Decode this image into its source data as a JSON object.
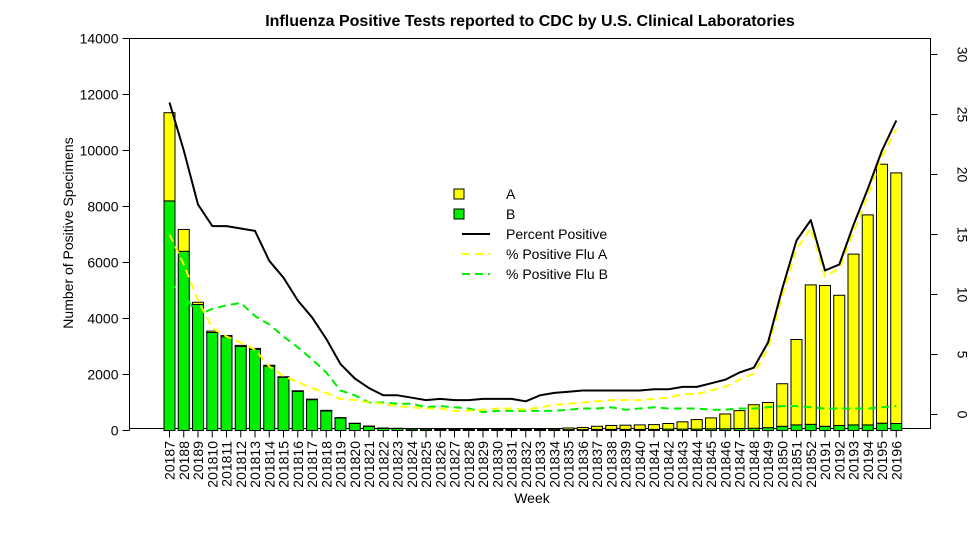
{
  "chart_data": {
    "type": "bar",
    "title": "Influenza Positive Tests reported to CDC by U.S. Clinical Laboratories",
    "xlabel": "Week",
    "ylabel": "Number of Positive Specimens",
    "ylim": [
      0,
      14000
    ],
    "y_ticks": [
      0,
      2000,
      4000,
      6000,
      8000,
      10000,
      12000,
      14000
    ],
    "y2lim": [
      -1.5,
      31
    ],
    "y2_ticks": [
      0,
      5,
      10,
      15,
      20,
      25,
      30
    ],
    "stacked": true,
    "grid": false,
    "legend_position": "center",
    "categories": [
      "20187",
      "20188",
      "20189",
      "201810",
      "201811",
      "201812",
      "201813",
      "201814",
      "201815",
      "201816",
      "201817",
      "201818",
      "201819",
      "201820",
      "201821",
      "201822",
      "201823",
      "201824",
      "201825",
      "201826",
      "201827",
      "201828",
      "201829",
      "201830",
      "201831",
      "201832",
      "201833",
      "201834",
      "201835",
      "201836",
      "201837",
      "201838",
      "201839",
      "201840",
      "201841",
      "201842",
      "201843",
      "201844",
      "201845",
      "201846",
      "201847",
      "201848",
      "201849",
      "201850",
      "201851",
      "201852",
      "20191",
      "20192",
      "20193",
      "20194",
      "20195",
      "20196"
    ],
    "series": [
      {
        "name": "B",
        "kind": "bar",
        "color": "#00ee00",
        "values": [
          8200,
          6400,
          4500,
          3500,
          3350,
          3000,
          2900,
          2300,
          1900,
          1400,
          1100,
          700,
          450,
          250,
          150,
          80,
          70,
          50,
          50,
          40,
          30,
          30,
          30,
          30,
          30,
          30,
          30,
          30,
          30,
          30,
          40,
          40,
          40,
          40,
          40,
          50,
          50,
          50,
          60,
          60,
          70,
          80,
          100,
          150,
          200,
          220,
          150,
          180,
          200,
          200,
          260,
          250
        ]
      },
      {
        "name": "A",
        "kind": "bar",
        "color": "#ffff00",
        "values": [
          3150,
          780,
          80,
          50,
          40,
          40,
          30,
          30,
          20,
          20,
          20,
          20,
          10,
          10,
          10,
          10,
          10,
          10,
          10,
          10,
          10,
          10,
          10,
          10,
          20,
          20,
          20,
          40,
          60,
          80,
          110,
          140,
          150,
          160,
          170,
          200,
          260,
          340,
          390,
          530,
          640,
          840,
          900,
          1520,
          3050,
          4980,
          5030,
          4650,
          6100,
          7500,
          9250,
          8950
        ]
      },
      {
        "name": "Percent Positive",
        "kind": "line",
        "color": "#000000",
        "dash": "solid",
        "axis": "right",
        "values": [
          26.0,
          22.0,
          17.5,
          15.7,
          15.7,
          15.5,
          15.3,
          12.8,
          11.4,
          9.5,
          8.1,
          6.3,
          4.2,
          3.0,
          2.2,
          1.6,
          1.6,
          1.4,
          1.2,
          1.3,
          1.2,
          1.2,
          1.3,
          1.3,
          1.3,
          1.1,
          1.6,
          1.8,
          1.9,
          2.0,
          2.0,
          2.0,
          2.0,
          2.0,
          2.1,
          2.1,
          2.3,
          2.3,
          2.6,
          2.9,
          3.5,
          3.9,
          6.0,
          10.5,
          14.5,
          16.2,
          12.0,
          12.5,
          15.8,
          18.8,
          22.0,
          24.5
        ]
      },
      {
        "name": "% Positive Flu A",
        "kind": "line",
        "color": "#ffff00",
        "dash": "dashed",
        "axis": "right",
        "values": [
          15.0,
          12.5,
          9.5,
          7.2,
          6.5,
          6.0,
          5.4,
          4.0,
          3.2,
          2.7,
          2.2,
          1.8,
          1.3,
          1.2,
          1.0,
          0.9,
          0.7,
          0.6,
          0.5,
          0.5,
          0.3,
          0.3,
          0.4,
          0.5,
          0.5,
          0.4,
          0.6,
          0.8,
          0.9,
          1.0,
          1.1,
          1.2,
          1.2,
          1.2,
          1.3,
          1.4,
          1.7,
          1.7,
          2.0,
          2.3,
          2.9,
          3.4,
          5.5,
          9.9,
          13.8,
          15.5,
          11.5,
          12.2,
          15.2,
          18.2,
          21.5,
          23.8
        ]
      },
      {
        "name": "% Positive Flu B",
        "kind": "line",
        "color": "#00ee00",
        "dash": "dashed",
        "axis": "right",
        "values": [
          11.0,
          10.0,
          8.3,
          8.8,
          9.1,
          9.3,
          8.2,
          7.5,
          6.5,
          5.6,
          4.6,
          3.5,
          2.0,
          1.6,
          1.0,
          1.0,
          0.9,
          0.9,
          0.6,
          0.7,
          0.6,
          0.5,
          0.2,
          0.3,
          0.3,
          0.3,
          0.3,
          0.3,
          0.4,
          0.5,
          0.5,
          0.6,
          0.4,
          0.5,
          0.6,
          0.5,
          0.5,
          0.5,
          0.4,
          0.4,
          0.5,
          0.5,
          0.6,
          0.7,
          0.7,
          0.6,
          0.5,
          0.5,
          0.5,
          0.5,
          0.6,
          0.7
        ]
      }
    ]
  }
}
